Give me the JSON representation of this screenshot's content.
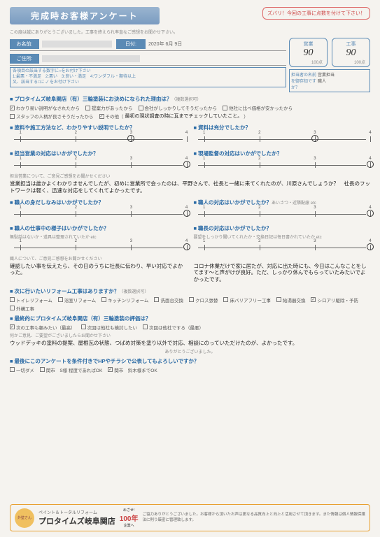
{
  "header": {
    "title": "完成時お客様アンケート",
    "score_prompt": "ズバリ！今回の工事に点数を付けて下さい！",
    "subtitle": "この度は誠にありがとうございました。工事を終えられ率直なご感想をお聞かせ下さい。"
  },
  "info": {
    "name_label": "お名前:",
    "date_label": "日付:",
    "date_value": "2020年 6月 9日",
    "address_label": "ご住所:"
  },
  "scores": {
    "eigyo_label": "営業",
    "eigyo_value": "90",
    "eigyo_max": "100点",
    "kouji_label": "工事",
    "kouji_value": "90",
    "kouji_max": "100点"
  },
  "tantou": {
    "q": "担当者の名前を御存知ですか？",
    "a1": "営業担当",
    "a2": "職人"
  },
  "instr": {
    "line1": "各項目の該当する数字に○をお付け下さい",
    "line2": "1:最悪・不満足　2:悪い　3:良い・満足　4:ワンダフル・期待以上",
    "line3": "又、該当する□に ✓ をお付け下さい"
  },
  "q1": {
    "title": "プロタイムズ岐阜関店（有）三輪塗装にお決めになられた理由は？",
    "sub": "（複数選択可）",
    "opts": [
      "わかり易い説明がなされたから",
      "提案力があったから",
      "会社がしっかりしてそうだったから",
      "他社に比べ価格が安かったから",
      "スタッフの人柄が良さそうだったから",
      "その他（"
    ],
    "checked": [
      0,
      5
    ],
    "other_text": "最初の現状調査の時に瓦までチェックしていたこと。"
  },
  "q2": {
    "title": "塗料や施工方法など、わかりやすい説明でしたか？",
    "circle": 3
  },
  "q3": {
    "title": "資料は充分でしたか？",
    "circle": 3
  },
  "q4": {
    "title": "担当営業の対応はいかがでしたか？",
    "circle": 4
  },
  "q5": {
    "title": "現場監督の対応はいかがでしたか？",
    "circle": 4
  },
  "free1": {
    "prompt": "担当営業について、ご意見ご感想をお聞かせください",
    "text": "営業担当は誰かよくわかりませんでしたが、初めに営業所で会ったのは、平野さんで、社長と一緒に来てくれたのが、川原さんでしょうか？　社長のフットワークは軽く、迅速な対応をしてくれてよかったです。"
  },
  "q6": {
    "title": "職人の身だしなみはいかがでしたか？",
    "circle": 4
  },
  "q7": {
    "title": "職人の対応はいかがでしたか？",
    "sub": "あいさつ・近隣配慮 etc",
    "circle": 4
  },
  "q8": {
    "title": "職人の仕事中の様子はいかがでしたか？",
    "sub": "無駄話はないか・道具は整理されていたか etc",
    "circle": 4
  },
  "q9": {
    "title": "職長の対応はいかがでしたか？",
    "sub": "要望をしっかり聞いてくれたか・交換日記は毎日書かれていたか etc",
    "circle": 4
  },
  "free2": {
    "prompt": "職人について、ご意見ご感想をお聞かせください",
    "left": "確認したい事を伝えたら、その日のうちに社長に伝わり、早い対応でよかった。",
    "right": "コロナ休業だけで家に居たが、対応に出た時にも、今日はこんなことをしてます〜と声がけが良好。ただ、しっかり休んでもらっていたみたいでよかったです。"
  },
  "q10": {
    "title": "次に行いたいリフォーム工事はありますか？",
    "sub": "（複数選択可）",
    "opts": [
      "トイレリフォーム",
      "浴室リフォーム",
      "キッチンリフォーム",
      "洗面台交換",
      "クロス張替",
      "床バリアフリー工事",
      "給湯器交換",
      "シロアリ駆除・予防",
      "外構工事"
    ],
    "checked": [
      7
    ]
  },
  "q11": {
    "title": "最終的にプロタイムズ岐阜関店（有）三輪塗装の評価は？",
    "opts": [
      "次の工事も頼みたい（最高）",
      "次回は他社も検討したい",
      "次回は他社でする（最悪）"
    ],
    "checked": [
      0
    ]
  },
  "free3": {
    "prompt": "何かご意見、ご要望がございましたらお聞かせ下さい",
    "text": "ウッドデッキの塗料の提案、屋根瓦の状態、つばめ対策を塗り以外で対応、相談にのっていただけたのが、よかったです。",
    "thanks": "ありがとうございました。"
  },
  "q12": {
    "title": "最後にこのアンケートを条件付きでHPやチラシで公表してもよろしいですか？",
    "opts": [
      "一切ダメ",
      "関市　S様 程度であればOK",
      "関市　鈴木様までOK"
    ],
    "checked": [
      2
    ]
  },
  "footer": {
    "logo": "外壁さん",
    "brand_small": "ペイント＆トータルリフォーム",
    "brand": "プロタイムズ岐阜関店",
    "badge_pre": "めざせ!",
    "badge": "100年",
    "badge_post": "企業へ",
    "text": "ご協力ありがとうございました。お客様から頂いたお声は更なる品質向上と向上と活用させて頂きます。また情報は個人情報保護法に則り厳密に管理致します。"
  },
  "scale": {
    "ticks": [
      1,
      2,
      3,
      4
    ]
  },
  "colors": {
    "primary": "#2a6aa5",
    "accent": "#d66"
  }
}
